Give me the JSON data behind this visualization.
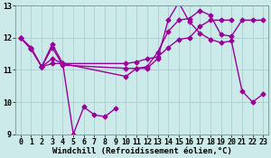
{
  "background_color": "#cceaea",
  "grid_color": "#aacfcf",
  "line_color": "#990099",
  "marker": "D",
  "markersize": 2.5,
  "linewidth": 1.0,
  "xlim": [
    -0.5,
    23.5
  ],
  "ylim": [
    9,
    13
  ],
  "yticks": [
    9,
    10,
    11,
    12,
    13
  ],
  "xticks": [
    0,
    1,
    2,
    3,
    4,
    5,
    6,
    7,
    8,
    9,
    10,
    11,
    12,
    13,
    14,
    15,
    16,
    17,
    18,
    19,
    20,
    21,
    22,
    23
  ],
  "xlabel": "Windchill (Refroidissement éolien,°C)",
  "xlabel_fontsize": 6.5,
  "tick_fontsize": 6.0,
  "series": [
    {
      "x": [
        0,
        1,
        2,
        3,
        4,
        5,
        6,
        7,
        8,
        9
      ],
      "y": [
        12.0,
        11.7,
        11.1,
        11.8,
        11.2,
        9.0,
        9.85,
        9.6,
        9.55,
        9.8
      ]
    },
    {
      "x": [
        0,
        1,
        2,
        3,
        4,
        10,
        11,
        12,
        13,
        14,
        15,
        16,
        17,
        18,
        19,
        20,
        21,
        22,
        23
      ],
      "y": [
        12.0,
        11.65,
        11.1,
        11.7,
        11.15,
        11.05,
        11.05,
        11.05,
        11.35,
        12.55,
        13.1,
        12.5,
        12.15,
        11.95,
        11.85,
        11.9,
        10.35,
        10.0,
        10.25
      ]
    },
    {
      "x": [
        0,
        1,
        2,
        3,
        4,
        10,
        11,
        12,
        13,
        14,
        15,
        16,
        17,
        18,
        19,
        20,
        21,
        22,
        23
      ],
      "y": [
        12.0,
        11.65,
        11.1,
        11.35,
        11.2,
        10.8,
        11.05,
        11.1,
        11.55,
        12.2,
        12.55,
        12.6,
        12.85,
        12.7,
        12.1,
        12.05,
        12.55,
        12.55,
        12.55
      ]
    },
    {
      "x": [
        2,
        3,
        4,
        10,
        11,
        12,
        13,
        14,
        15,
        16,
        17,
        18,
        19,
        20
      ],
      "y": [
        11.1,
        11.2,
        11.2,
        11.2,
        11.25,
        11.35,
        11.4,
        11.7,
        11.95,
        12.0,
        12.35,
        12.55,
        12.55,
        12.55
      ]
    }
  ]
}
